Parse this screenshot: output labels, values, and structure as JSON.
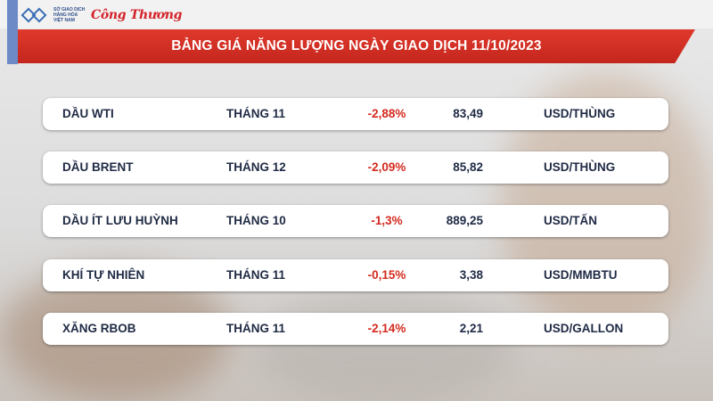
{
  "header": {
    "logo_text": "SỞ GIAO DỊCH HÀNG HÓA VIỆT NAM",
    "brand": "Công Thương"
  },
  "title": "BẢNG GIÁ NĂNG LƯỢNG NGÀY GIAO DỊCH 11/10/2023",
  "colors": {
    "accent": "#d4232a",
    "negative": "#d42a1f",
    "text": "#1f2a44"
  },
  "rows": [
    {
      "name": "DẦU WTI",
      "month": "THÁNG 11",
      "change": "-2,88%",
      "price": "83,49",
      "unit": "USD/THÙNG"
    },
    {
      "name": "DẦU BRENT",
      "month": "THÁNG 12",
      "change": "-2,09%",
      "price": "85,82",
      "unit": "USD/THÙNG"
    },
    {
      "name": "DẦU ÍT LƯU HUỲNH",
      "month": "THÁNG 10",
      "change": "-1,3%",
      "price": "889,25",
      "unit": "USD/TẤN"
    },
    {
      "name": "KHÍ TỰ NHIÊN",
      "month": "THÁNG 11",
      "change": "-0,15%",
      "price": "3,38",
      "unit": "USD/MMBTU"
    },
    {
      "name": "XĂNG RBOB",
      "month": "THÁNG 11",
      "change": "-2,14%",
      "price": "2,21",
      "unit": "USD/GALLON"
    }
  ]
}
